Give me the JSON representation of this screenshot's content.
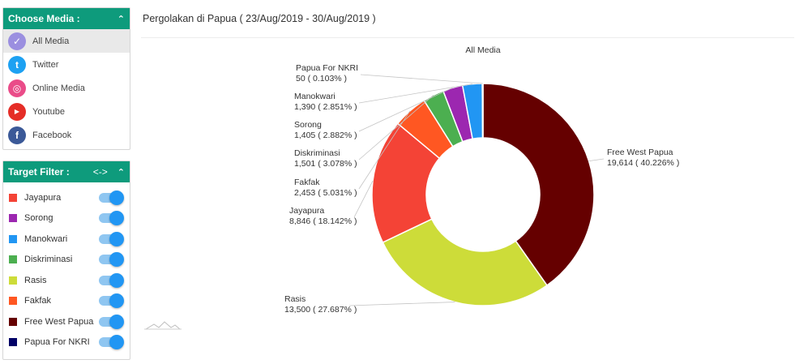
{
  "media_panel": {
    "title": "Choose Media :",
    "items": [
      {
        "label": "All Media",
        "active": true,
        "icon": "check-icon",
        "color": "#9b8fe0"
      },
      {
        "label": "Twitter",
        "active": false,
        "icon": "twitter-icon",
        "color": "#1da1f2"
      },
      {
        "label": "Online Media",
        "active": false,
        "icon": "dribbble-icon",
        "color": "#ea4c89"
      },
      {
        "label": "Youtube",
        "active": false,
        "icon": "youtube-icon",
        "color": "#e52d27"
      },
      {
        "label": "Facebook",
        "active": false,
        "icon": "facebook-icon",
        "color": "#3b5998"
      }
    ]
  },
  "filter_panel": {
    "title": "Target Filter :",
    "swap_icon": "<->",
    "items": [
      {
        "label": "Jayapura",
        "color": "#f44336",
        "on": true
      },
      {
        "label": "Sorong",
        "color": "#9c27b0",
        "on": true
      },
      {
        "label": "Manokwari",
        "color": "#2196f3",
        "on": true
      },
      {
        "label": "Diskriminasi",
        "color": "#4caf50",
        "on": true
      },
      {
        "label": "Rasis",
        "color": "#cddc39",
        "on": true
      },
      {
        "label": "Fakfak",
        "color": "#ff5722",
        "on": true
      },
      {
        "label": "Free West Papua",
        "color": "#650000",
        "on": true
      },
      {
        "label": "Papua For NKRI",
        "color": "#000066",
        "on": true
      }
    ]
  },
  "page": {
    "title": "Pergolakan di Papua ( 23/Aug/2019 - 30/Aug/2019 )"
  },
  "chart_data": {
    "type": "pie",
    "donut": true,
    "title": "All Media",
    "slices": [
      {
        "name": "Free West Papua",
        "value": 19614,
        "value_label": "19,614",
        "percent_label": "40.226%",
        "color": "#650000"
      },
      {
        "name": "Rasis",
        "value": 13500,
        "value_label": "13,500",
        "percent_label": "27.687%",
        "color": "#cddc39"
      },
      {
        "name": "Jayapura",
        "value": 8846,
        "value_label": "8,846",
        "percent_label": "18.142%",
        "color": "#f44336"
      },
      {
        "name": "Fakfak",
        "value": 2453,
        "value_label": "2,453",
        "percent_label": "5.031%",
        "color": "#ff5722"
      },
      {
        "name": "Diskriminasi",
        "value": 1501,
        "value_label": "1,501",
        "percent_label": "3.078%",
        "color": "#4caf50"
      },
      {
        "name": "Sorong",
        "value": 1405,
        "value_label": "1,405",
        "percent_label": "2.882%",
        "color": "#9c27b0"
      },
      {
        "name": "Manokwari",
        "value": 1390,
        "value_label": "1,390",
        "percent_label": "2.851%",
        "color": "#2196f3"
      },
      {
        "name": "Papua For NKRI",
        "value": 50,
        "value_label": "50",
        "percent_label": "0.103%",
        "color": "#000066"
      }
    ]
  }
}
